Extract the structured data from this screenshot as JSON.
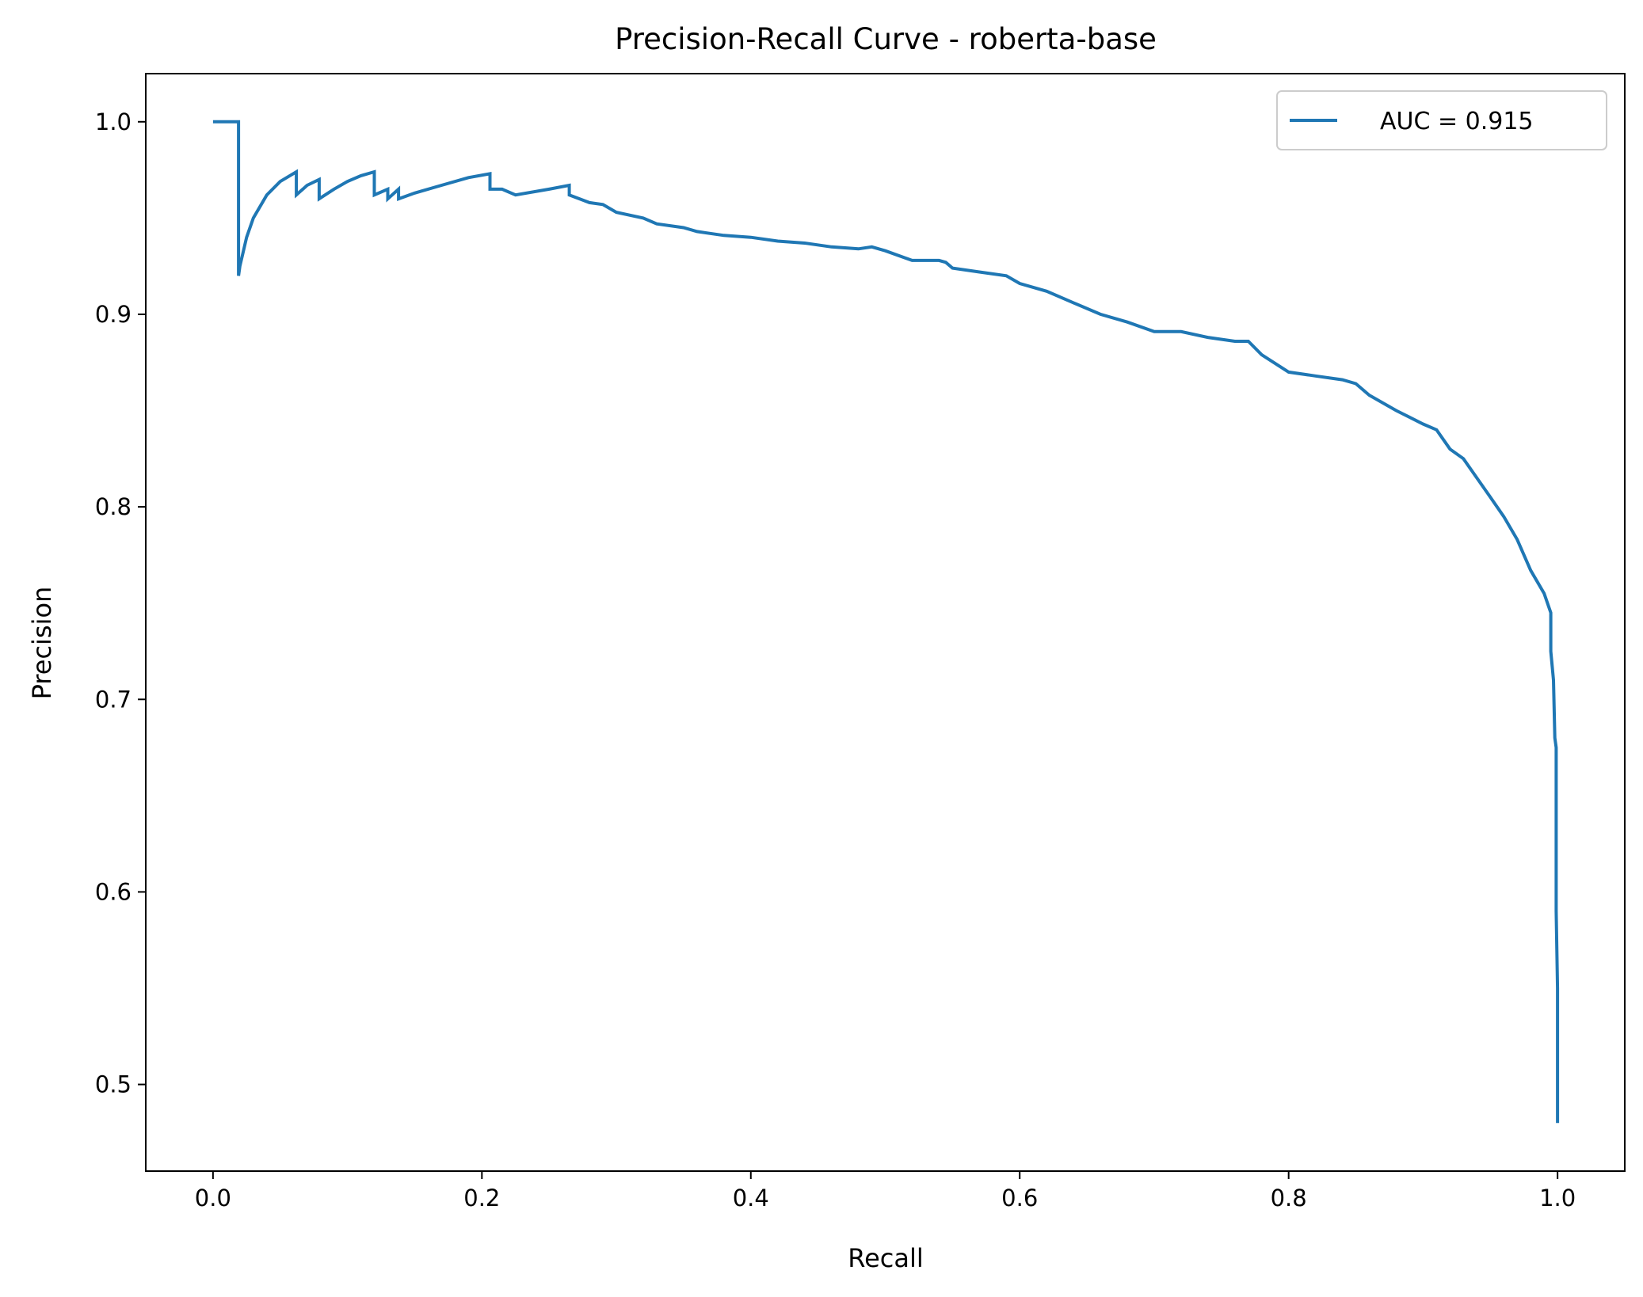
{
  "chart_data": {
    "type": "line",
    "title": "Precision-Recall Curve - roberta-base",
    "xlabel": "Recall",
    "ylabel": "Precision",
    "xlim": [
      -0.05,
      1.05
    ],
    "ylim": [
      0.455,
      1.025
    ],
    "xticks": [
      0.0,
      0.2,
      0.4,
      0.6,
      0.8,
      1.0
    ],
    "xtick_labels": [
      "0.0",
      "0.2",
      "0.4",
      "0.6",
      "0.8",
      "1.0"
    ],
    "yticks": [
      0.5,
      0.6,
      0.7,
      0.8,
      0.9,
      1.0
    ],
    "ytick_labels": [
      "0.5",
      "0.6",
      "0.7",
      "0.8",
      "0.9",
      "1.0"
    ],
    "grid": false,
    "legend": {
      "position": "top-right",
      "entries": [
        "AUC = 0.915"
      ]
    },
    "series": [
      {
        "name": "AUC = 0.915",
        "color": "#1f77b4",
        "x": [
          0.0,
          0.019,
          0.019,
          0.02,
          0.025,
          0.03,
          0.04,
          0.05,
          0.062,
          0.062,
          0.07,
          0.079,
          0.079,
          0.09,
          0.1,
          0.11,
          0.12,
          0.12,
          0.13,
          0.13,
          0.138,
          0.138,
          0.15,
          0.17,
          0.19,
          0.206,
          0.206,
          0.215,
          0.225,
          0.225,
          0.25,
          0.265,
          0.265,
          0.28,
          0.29,
          0.3,
          0.3,
          0.32,
          0.33,
          0.35,
          0.36,
          0.38,
          0.4,
          0.42,
          0.44,
          0.46,
          0.48,
          0.49,
          0.5,
          0.52,
          0.54,
          0.545,
          0.55,
          0.57,
          0.59,
          0.6,
          0.62,
          0.64,
          0.66,
          0.68,
          0.7,
          0.72,
          0.74,
          0.76,
          0.77,
          0.78,
          0.8,
          0.82,
          0.84,
          0.85,
          0.86,
          0.88,
          0.9,
          0.91,
          0.92,
          0.93,
          0.94,
          0.95,
          0.96,
          0.97,
          0.98,
          0.99,
          0.995,
          0.995,
          0.997,
          0.998,
          0.999,
          0.999,
          1.0,
          1.0
        ],
        "y": [
          1.0,
          1.0,
          0.92,
          0.925,
          0.94,
          0.95,
          0.962,
          0.969,
          0.974,
          0.962,
          0.967,
          0.97,
          0.96,
          0.965,
          0.969,
          0.972,
          0.974,
          0.962,
          0.965,
          0.96,
          0.965,
          0.96,
          0.963,
          0.967,
          0.971,
          0.973,
          0.965,
          0.965,
          0.962,
          0.962,
          0.965,
          0.967,
          0.962,
          0.958,
          0.957,
          0.953,
          0.953,
          0.95,
          0.947,
          0.945,
          0.943,
          0.941,
          0.94,
          0.938,
          0.937,
          0.935,
          0.934,
          0.935,
          0.933,
          0.928,
          0.928,
          0.927,
          0.924,
          0.922,
          0.92,
          0.916,
          0.912,
          0.906,
          0.9,
          0.896,
          0.891,
          0.891,
          0.888,
          0.886,
          0.886,
          0.879,
          0.87,
          0.868,
          0.866,
          0.864,
          0.858,
          0.85,
          0.843,
          0.84,
          0.83,
          0.825,
          0.815,
          0.805,
          0.795,
          0.783,
          0.767,
          0.755,
          0.745,
          0.725,
          0.71,
          0.68,
          0.675,
          0.59,
          0.55,
          0.48
        ]
      }
    ]
  }
}
